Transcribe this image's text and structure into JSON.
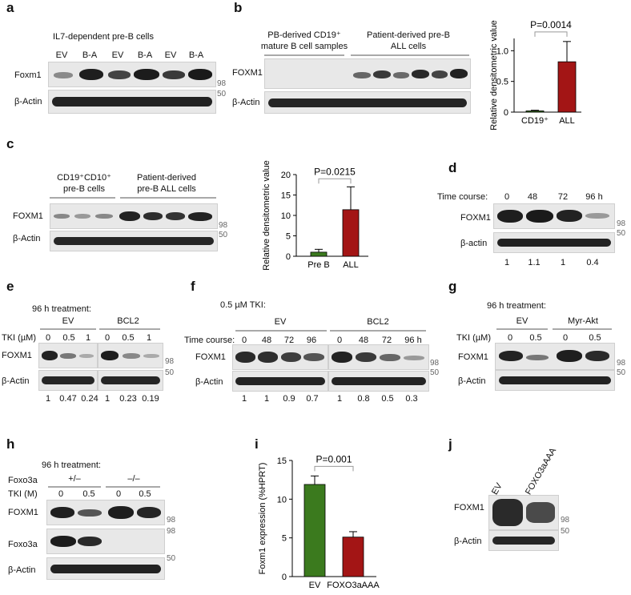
{
  "panels": {
    "a": {
      "label": "a",
      "title": "IL7-dependent pre-B cells",
      "lanes": [
        "EV",
        "B-A",
        "EV",
        "B-A",
        "EV",
        "B-A"
      ],
      "row1": "Foxm1",
      "row2": "β-Actin",
      "m1": "98",
      "m2": "50"
    },
    "b": {
      "label": "b",
      "group1": "PB-derived CD19⁺\nmature B cell samples",
      "group2": "Patient-derived pre-B\nALL cells",
      "row1": "FOXM1",
      "row2": "β-Actin"
    },
    "c": {
      "label": "c",
      "group1": "CD19⁺CD10⁺\npre-B cells",
      "group2": "Patient-derived\npre-B ALL cells",
      "row1": "FOXM1",
      "row2": "β-Actin",
      "m1": "98",
      "m2": "50"
    },
    "d": {
      "label": "d",
      "time_label": "Time course:",
      "lanes": [
        "0",
        "48",
        "72",
        "96 h"
      ],
      "row1": "FOXM1",
      "row2": "β-actin",
      "m1": "98",
      "m2": "50",
      "quant": [
        "1",
        "1.1",
        "1",
        "0.4"
      ]
    },
    "e": {
      "label": "e",
      "title": "96 h treatment:",
      "group1": "EV",
      "group2": "BCL2",
      "tki_label": "TKI (µM)",
      "lanes": [
        "0",
        "0.5",
        "1",
        "0",
        "0.5",
        "1"
      ],
      "row1": "FOXM1",
      "row2": "β-Actin",
      "m1": "98",
      "m2": "50",
      "quant": [
        "1",
        "0.47",
        "0.24",
        "1",
        "0.23",
        "0.19"
      ]
    },
    "f": {
      "label": "f",
      "title": "0.5 µM TKI:",
      "group1": "EV",
      "group2": "BCL2",
      "time_label": "Time course:",
      "lanes": [
        "0",
        "48",
        "72",
        "96",
        "0",
        "48",
        "72",
        "96 h"
      ],
      "row1": "FOXM1",
      "row2": "β-Actin",
      "m1": "98",
      "m2": "50",
      "quant": [
        "1",
        "1",
        "0.9",
        "0.7",
        "1",
        "0.8",
        "0.5",
        "0.3"
      ]
    },
    "g": {
      "label": "g",
      "title": "96 h treatment:",
      "group1": "EV",
      "group2": "Myr-Akt",
      "tki_label": "TKI (µM)",
      "lanes": [
        "0",
        "0.5",
        "0",
        "0.5"
      ],
      "row1": "FOXM1",
      "row2": "β-Actin",
      "m1": "98",
      "m2": "50"
    },
    "h": {
      "label": "h",
      "title": "96 h treatment:",
      "foxo_label": "Foxo3a",
      "group1": "+/–",
      "group2": "–/–",
      "tki_label": "TKI (M)",
      "lanes": [
        "0",
        "0.5",
        "0",
        "0.5"
      ],
      "row1": "FOXM1",
      "row2": "Foxo3a",
      "row3": "β-Actin",
      "m1": "98",
      "m2": "98",
      "m3": "50"
    },
    "i": {
      "label": "i"
    },
    "j": {
      "label": "j",
      "lanes": [
        "EV",
        "FOXO3aAAA"
      ],
      "row1": "FOXM1",
      "row2": "β-Actin",
      "m1": "98",
      "m2": "50"
    }
  },
  "colors": {
    "red": "#a31515",
    "green": "#3b7a1e"
  },
  "chart_data": [
    {
      "panel": "b",
      "type": "bar",
      "categories": [
        "CD19⁺",
        "ALL"
      ],
      "values": [
        0.02,
        0.82
      ],
      "errors": [
        0.01,
        0.33
      ],
      "colors": [
        "#3b7a1e",
        "#a31515"
      ],
      "ylabel": "Relative densitometric value",
      "ylim": [
        0,
        1.2
      ],
      "yticks": [
        "0",
        "0.5",
        "1.0"
      ],
      "yticklabels": [
        "0",
        "0.5",
        "1.0"
      ],
      "pvalue": "P=0.0014"
    },
    {
      "panel": "c",
      "type": "bar",
      "categories": [
        "Pre B",
        "ALL"
      ],
      "values": [
        1.0,
        11.4
      ],
      "errors": [
        0.7,
        5.6
      ],
      "colors": [
        "#3b7a1e",
        "#a31515"
      ],
      "ylabel": "Relative densitometric value",
      "ylim": [
        0,
        20
      ],
      "yticks": [
        "0",
        "5",
        "10",
        "15",
        "20"
      ],
      "yticklabels": [
        "0",
        "5",
        "10",
        "15",
        "20"
      ],
      "pvalue": "P=0.0215"
    },
    {
      "panel": "i",
      "type": "bar",
      "categories": [
        "EV",
        "FOXO3aAAA"
      ],
      "values": [
        11.9,
        5.1
      ],
      "errors": [
        1.1,
        0.7
      ],
      "colors": [
        "#3b7a1e",
        "#a31515"
      ],
      "ylabel": "Foxm1 expression (%HPRT)",
      "ylim": [
        0,
        15
      ],
      "yticks": [
        "0",
        "5",
        "10",
        "15"
      ],
      "yticklabels": [
        "0",
        "5",
        "10",
        "15"
      ],
      "pvalue": "P=0.001"
    }
  ]
}
